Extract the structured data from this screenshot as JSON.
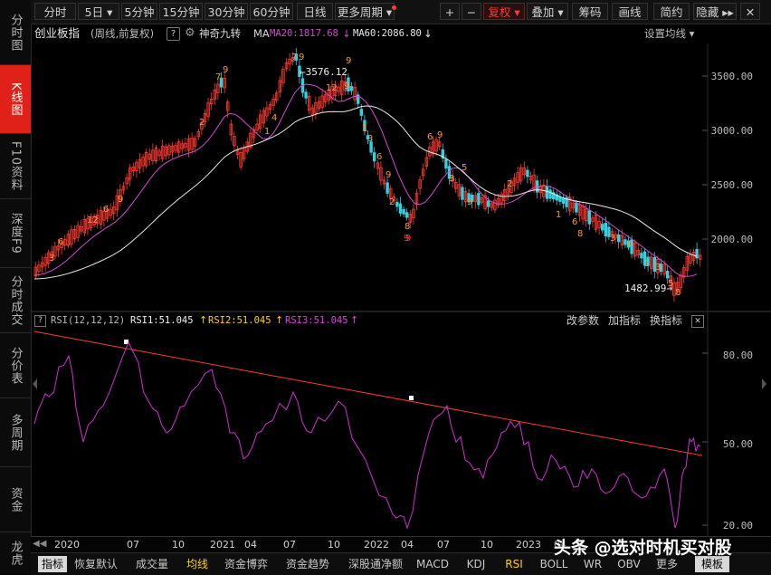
{
  "sidebar": {
    "items": [
      {
        "label": "分时图"
      },
      {
        "label": "K线图"
      },
      {
        "label": "F10资料"
      },
      {
        "label": "深度F9"
      },
      {
        "label": "分时成交"
      },
      {
        "label": "分价表"
      },
      {
        "label": "多周期"
      },
      {
        "label": "资金"
      },
      {
        "label": "龙虎"
      }
    ]
  },
  "toolbar": {
    "periods": [
      "分时",
      "5日",
      "5分钟",
      "15分钟",
      "30分钟",
      "60分钟",
      "日线",
      "更多周期"
    ],
    "plus": "+",
    "minus": "−",
    "fuquan": "复权",
    "diejia": "叠加",
    "choumа": "筹码",
    "huaxian": "画线",
    "jianyue": "简约",
    "yincang": "隐藏",
    "close": "✕"
  },
  "info": {
    "name": "创业板指",
    "period": "(周线,前复权)",
    "help": "?",
    "indicator": "神奇九转",
    "ma_label": "MA",
    "ma20": "MA20:1817.68",
    "ma60": "MA60:2086.80",
    "settings": "设置均线"
  },
  "chart": {
    "y_labels": [
      "3500.00",
      "3000.00",
      "2500.00",
      "2000.00"
    ],
    "high_label": "3576.12",
    "low_label": "1482.99",
    "tomato_9": "9"
  },
  "rsi": {
    "help": "?",
    "title": "RSI(12,12,12)",
    "rsi1": "RSI1:51.045",
    "rsi2": "RSI2:51.045",
    "rsi3": "RSI3:51.045",
    "actions": [
      "改参数",
      "加指标",
      "换指标"
    ],
    "y_labels": [
      "80.00",
      "50.00",
      "20.00"
    ]
  },
  "xaxis": {
    "labels": [
      "2020",
      "07",
      "10",
      "2021",
      "04",
      "07",
      "10",
      "2022",
      "04",
      "07",
      "10",
      "2023",
      "04"
    ]
  },
  "tabs": {
    "items": [
      "指标",
      "恢复默认",
      "成交量",
      "均线",
      "资金博弈",
      "资金趋势",
      "深股通净额",
      "MACD",
      "KDJ",
      "RSI",
      "BOLL",
      "WR",
      "OBV",
      "更多",
      "模板"
    ]
  },
  "watermark": "头条 @选对时机买对股",
  "colors": {
    "up": "#ff3b30",
    "down": "#32d0e0",
    "ma20": "#d04bd0",
    "ma60": "#e8e8e8",
    "rsi": "#d030d0",
    "trend": "#ff3b30",
    "count": "#ff9a2e"
  }
}
